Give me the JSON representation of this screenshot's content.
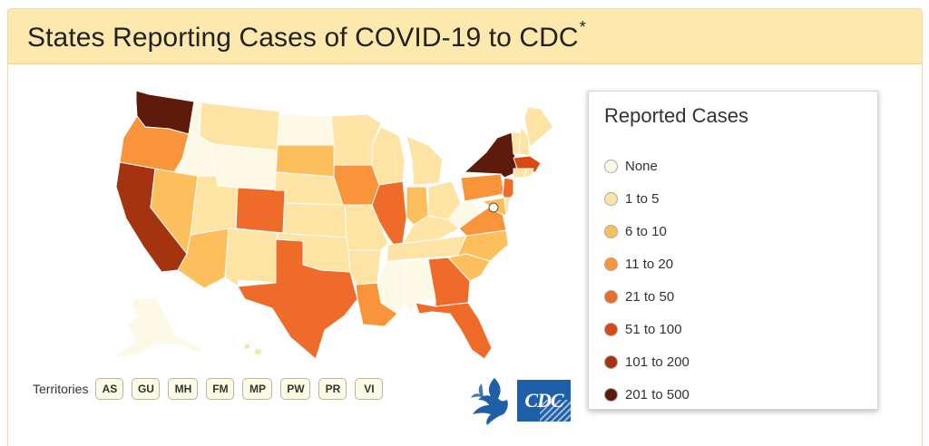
{
  "header": {
    "title": "States Reporting Cases of COVID-19 to CDC",
    "title_mark": "*"
  },
  "legend": {
    "title": "Reported Cases",
    "items": [
      {
        "label": "None",
        "color": "#fcfae6"
      },
      {
        "label": "1 to 5",
        "color": "#fde3a4"
      },
      {
        "label": "6 to 10",
        "color": "#fdbf5c"
      },
      {
        "label": "11 to 20",
        "color": "#f9943a"
      },
      {
        "label": "21 to 50",
        "color": "#ef6b2a"
      },
      {
        "label": "51 to 100",
        "color": "#d84a14"
      },
      {
        "label": "101 to 200",
        "color": "#a43410"
      },
      {
        "label": "201 to 500",
        "color": "#5e1a0b"
      }
    ]
  },
  "territories": {
    "label": "Territories",
    "items": [
      "AS",
      "GU",
      "MH",
      "FM",
      "MP",
      "PW",
      "PR",
      "VI"
    ]
  },
  "states": {
    "WA": "201 to 500",
    "NY": "201 to 500",
    "CA": "101 to 200",
    "MA": "51 to 100",
    "CO": "21 to 50",
    "TX": "21 to 50",
    "FL": "21 to 50",
    "GA": "21 to 50",
    "IL": "21 to 50",
    "NJ": "21 to 50",
    "OR": "11 to 20",
    "IA": "11 to 20",
    "PA": "11 to 20",
    "VA": "11 to 20",
    "LA": "11 to 20",
    "NV": "6 to 10",
    "AZ": "6 to 10",
    "SD": "6 to 10",
    "IN": "6 to 10",
    "NC": "6 to 10",
    "SC": "6 to 10",
    "MD": "6 to 10",
    "WY": "None",
    "ND": "None",
    "ID": "None",
    "WV": "None",
    "AK": "None",
    "MS": "None",
    "AL": "None",
    "DC": "None",
    "MT": "1 to 5",
    "MN": "1 to 5",
    "WI": "1 to 5",
    "MI": "1 to 5",
    "UT": "1 to 5",
    "NM": "1 to 5",
    "NE": "1 to 5",
    "KS": "1 to 5",
    "OK": "1 to 5",
    "MO": "1 to 5",
    "AR": "1 to 5",
    "TN": "1 to 5",
    "KY": "1 to 5",
    "OH": "1 to 5",
    "ME": "1 to 5",
    "VT": "1 to 5",
    "NH": "1 to 5",
    "RI": "1 to 5",
    "CT": "1 to 5",
    "DE": "1 to 5",
    "HI": "1 to 5"
  }
}
